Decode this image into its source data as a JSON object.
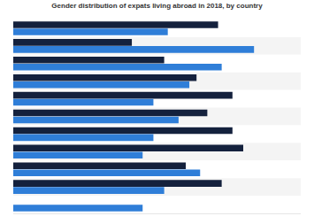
{
  "chart_data": {
    "type": "bar",
    "title": "Gender distribution of expats living abroad in 2018, by country",
    "orientation": "horizontal",
    "categories": [
      null,
      null,
      null,
      null,
      null,
      null,
      null,
      null,
      null,
      null,
      null
    ],
    "series": [
      {
        "color": "#14213d",
        "values": [
          57,
          33,
          42,
          51,
          61,
          54,
          61,
          64,
          48,
          58,
          null
        ]
      },
      {
        "color": "#2f7ed8",
        "values": [
          43,
          67,
          58,
          49,
          39,
          46,
          39,
          36,
          52,
          42,
          36
        ]
      }
    ],
    "xlim": [
      0,
      80
    ],
    "xticks": [],
    "tick_labels": false,
    "grid": false
  }
}
